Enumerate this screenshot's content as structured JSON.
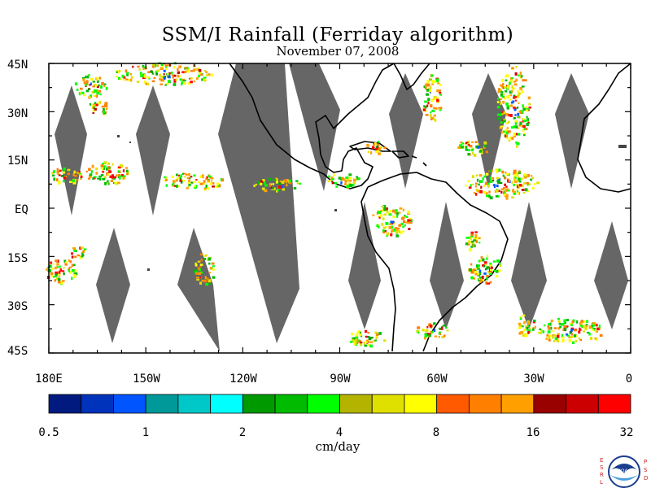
{
  "title": "SSM/I Rainfall (Ferriday algorithm)",
  "subtitle": "November 07, 2008",
  "lat_labels": [
    "45N",
    "30N",
    "15N",
    "EQ",
    "15S",
    "30S",
    "45S"
  ],
  "lon_labels": [
    "180E",
    "150W",
    "120W",
    "90W",
    "60W",
    "30W",
    "0"
  ],
  "colorbar": {
    "ticks": [
      "0.5",
      "1",
      "2",
      "4",
      "8",
      "16",
      "32"
    ],
    "unit": "cm/day",
    "colors": [
      "#001a80",
      "#0033bb",
      "#0055ff",
      "#009999",
      "#00c8c8",
      "#00ffff",
      "#009900",
      "#00bb00",
      "#00ff00",
      "#b4b400",
      "#e0e000",
      "#ffff00",
      "#ff5a00",
      "#ff8000",
      "#ffa000",
      "#990000",
      "#cc0000",
      "#ff0000"
    ]
  },
  "logo": {
    "left_letters": "ESRL",
    "right_letters": "PSD",
    "text": "NOAA"
  },
  "colors": {
    "swath_gap": "#666666",
    "coastline": "#000000",
    "background": "#ffffff"
  }
}
